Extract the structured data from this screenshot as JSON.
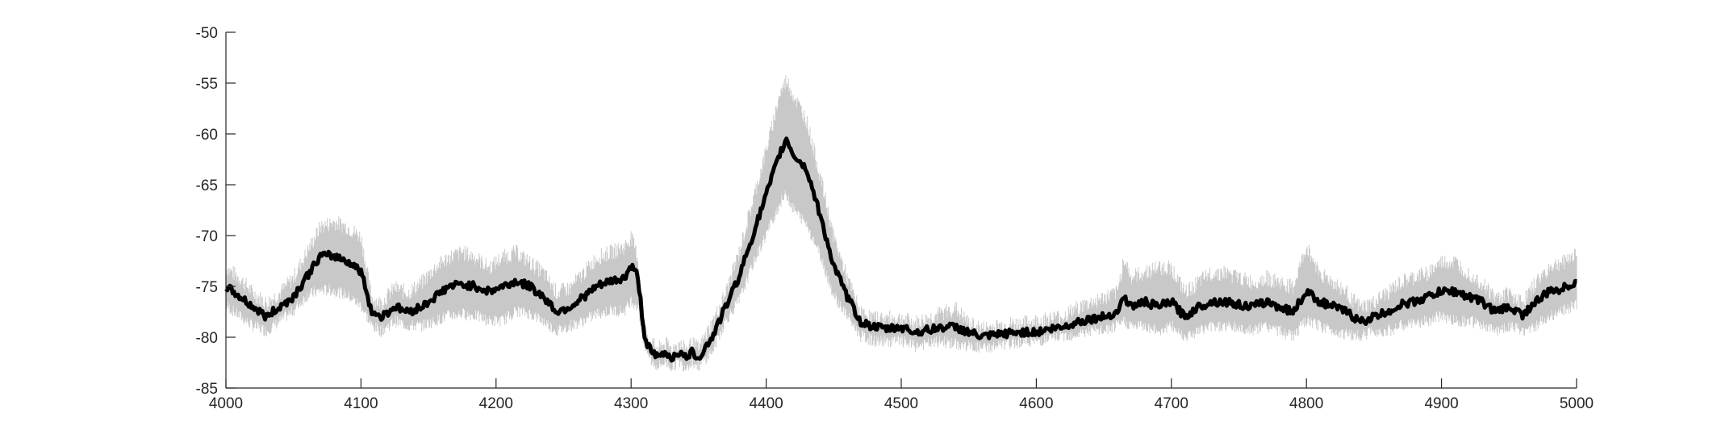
{
  "chart_data": {
    "type": "line",
    "title": "",
    "xlabel": "",
    "ylabel": "",
    "xlim": [
      4000,
      5000
    ],
    "ylim": [
      -85,
      -50
    ],
    "xticks": [
      "4000",
      "4100",
      "4200",
      "4300",
      "4400",
      "4500",
      "4600",
      "4700",
      "4800",
      "4900",
      "5000"
    ],
    "yticks": [
      "-50",
      "-55",
      "-60",
      "-65",
      "-70",
      "-75",
      "-80",
      "-85"
    ],
    "grid": false,
    "legend": "none",
    "colors": {
      "mean": "#000000",
      "band": "#c8c8c8",
      "axis": "#262626"
    },
    "series": [
      {
        "role": "mean",
        "x": [
          4000,
          4010,
          4020,
          4030,
          4040,
          4050,
          4060,
          4070,
          4080,
          4090,
          4100,
          4108,
          4115,
          4125,
          4135,
          4145,
          4155,
          4165,
          4175,
          4185,
          4195,
          4205,
          4215,
          4225,
          4235,
          4245,
          4255,
          4265,
          4275,
          4285,
          4295,
          4300,
          4305,
          4310,
          4315,
          4320,
          4325,
          4330,
          4335,
          4340,
          4345,
          4350,
          4360,
          4370,
          4380,
          4390,
          4400,
          4410,
          4415,
          4420,
          4430,
          4440,
          4450,
          4460,
          4470,
          4480,
          4490,
          4500,
          4510,
          4520,
          4530,
          4540,
          4550,
          4560,
          4570,
          4580,
          4590,
          4600,
          4610,
          4620,
          4630,
          4640,
          4650,
          4660,
          4665,
          4670,
          4680,
          4690,
          4700,
          4710,
          4720,
          4730,
          4740,
          4750,
          4760,
          4770,
          4780,
          4790,
          4800,
          4810,
          4820,
          4830,
          4840,
          4850,
          4860,
          4870,
          4880,
          4890,
          4900,
          4910,
          4920,
          4930,
          4940,
          4950,
          4960,
          4970,
          4980,
          4990,
          5000
        ],
        "y": [
          -75,
          -76,
          -77,
          -78,
          -77,
          -76,
          -74,
          -72,
          -72,
          -72.5,
          -73.5,
          -77.5,
          -78,
          -77,
          -77.5,
          -77,
          -76,
          -75,
          -74.8,
          -75,
          -75.5,
          -75,
          -74.5,
          -75,
          -76,
          -77.5,
          -77,
          -76,
          -75,
          -74.5,
          -74.2,
          -73,
          -74,
          -80,
          -81.5,
          -82,
          -81.5,
          -82,
          -81.5,
          -82,
          -81.5,
          -82,
          -80,
          -77,
          -74,
          -70,
          -66,
          -62,
          -60.5,
          -62,
          -63.5,
          -68,
          -73,
          -76,
          -78.5,
          -79,
          -79.2,
          -79,
          -79.5,
          -79.3,
          -79,
          -79,
          -79.5,
          -80,
          -79.8,
          -79.6,
          -79.5,
          -79.5,
          -79.2,
          -79,
          -78.5,
          -78.2,
          -78,
          -77.5,
          -76,
          -77,
          -76.5,
          -77,
          -76.5,
          -78,
          -77,
          -76.5,
          -76.5,
          -76.8,
          -77,
          -76.5,
          -77,
          -77.5,
          -75.5,
          -76.5,
          -77,
          -77.5,
          -78.5,
          -78,
          -77.5,
          -76.8,
          -76.5,
          -76,
          -75.5,
          -75.5,
          -76,
          -76.5,
          -77.5,
          -77,
          -77.8,
          -76.5,
          -75.5,
          -75.2,
          -74.5
        ]
      },
      {
        "role": "band",
        "x": [
          4000,
          4010,
          4020,
          4030,
          4040,
          4050,
          4060,
          4070,
          4080,
          4090,
          4100,
          4108,
          4115,
          4125,
          4135,
          4145,
          4155,
          4165,
          4175,
          4185,
          4195,
          4205,
          4215,
          4225,
          4235,
          4245,
          4255,
          4265,
          4275,
          4285,
          4295,
          4300,
          4305,
          4310,
          4315,
          4320,
          4325,
          4330,
          4335,
          4340,
          4345,
          4350,
          4360,
          4370,
          4380,
          4390,
          4400,
          4410,
          4415,
          4420,
          4430,
          4440,
          4450,
          4460,
          4470,
          4480,
          4490,
          4500,
          4510,
          4520,
          4530,
          4540,
          4550,
          4560,
          4570,
          4580,
          4590,
          4600,
          4610,
          4620,
          4630,
          4640,
          4650,
          4660,
          4665,
          4670,
          4680,
          4690,
          4700,
          4710,
          4720,
          4730,
          4740,
          4750,
          4760,
          4770,
          4780,
          4790,
          4800,
          4810,
          4820,
          4830,
          4840,
          4850,
          4860,
          4870,
          4880,
          4890,
          4900,
          4910,
          4920,
          4930,
          4940,
          4950,
          4960,
          4970,
          4980,
          4990,
          5000
        ],
        "upper": [
          -73,
          -74,
          -75.5,
          -76.5,
          -75.5,
          -74,
          -71.5,
          -69,
          -68.5,
          -69,
          -70,
          -76,
          -76.5,
          -75,
          -75.5,
          -74.5,
          -73,
          -72,
          -71.5,
          -72,
          -73,
          -72,
          -71.5,
          -72.5,
          -73.5,
          -75.5,
          -75,
          -73.5,
          -72,
          -71.5,
          -71,
          -70,
          -72,
          -79,
          -80.5,
          -81,
          -80.5,
          -81,
          -80.5,
          -81,
          -80.5,
          -81,
          -78.5,
          -75.5,
          -71.5,
          -66.5,
          -61.5,
          -56,
          -54.5,
          -56,
          -58.5,
          -64,
          -70,
          -74,
          -77.5,
          -78,
          -78,
          -78,
          -78.5,
          -78,
          -77.5,
          -77,
          -78.5,
          -79,
          -78.8,
          -78.6,
          -78.5,
          -78.3,
          -78,
          -77.8,
          -77,
          -76.5,
          -76,
          -75.5,
          -72,
          -74,
          -73.5,
          -73,
          -73,
          -75.5,
          -74.5,
          -73.5,
          -73.5,
          -74,
          -74.5,
          -74,
          -74.5,
          -75,
          -71,
          -73.5,
          -74.5,
          -75.5,
          -77,
          -76.5,
          -75.5,
          -74.5,
          -74,
          -73.5,
          -72.5,
          -72.5,
          -73.5,
          -74.5,
          -76,
          -75.5,
          -76.5,
          -74.5,
          -73,
          -72.5,
          -71.5
        ],
        "lower": [
          -77,
          -78,
          -79,
          -79.5,
          -78.5,
          -77.5,
          -76,
          -75.5,
          -75.5,
          -76,
          -77,
          -79,
          -79.5,
          -78.5,
          -79,
          -79,
          -78.5,
          -78,
          -77.8,
          -78,
          -78.5,
          -78.5,
          -77.5,
          -77.8,
          -78.5,
          -79.5,
          -79,
          -78.5,
          -77.8,
          -77.5,
          -77.5,
          -76.5,
          -77,
          -81,
          -82.5,
          -83,
          -82.5,
          -83,
          -82.5,
          -83,
          -82.5,
          -83,
          -81.5,
          -78.5,
          -76.5,
          -73,
          -70,
          -67,
          -66,
          -67.5,
          -69,
          -72,
          -76,
          -78,
          -80,
          -80.5,
          -80.5,
          -80.5,
          -81,
          -80.8,
          -80.5,
          -80.8,
          -81,
          -81.2,
          -81,
          -80.8,
          -80.5,
          -80.5,
          -80.3,
          -80,
          -79.8,
          -79.5,
          -79.5,
          -79,
          -78.5,
          -79,
          -79,
          -79.5,
          -79,
          -80,
          -79.5,
          -79,
          -79,
          -79.2,
          -79.5,
          -79,
          -79.5,
          -80,
          -78.5,
          -79,
          -79.5,
          -79.8,
          -80,
          -79.5,
          -79.5,
          -79,
          -78.8,
          -78.5,
          -78,
          -78.5,
          -78.5,
          -79,
          -79.5,
          -79,
          -79.5,
          -79,
          -78,
          -77.5,
          -77
        ]
      }
    ]
  }
}
